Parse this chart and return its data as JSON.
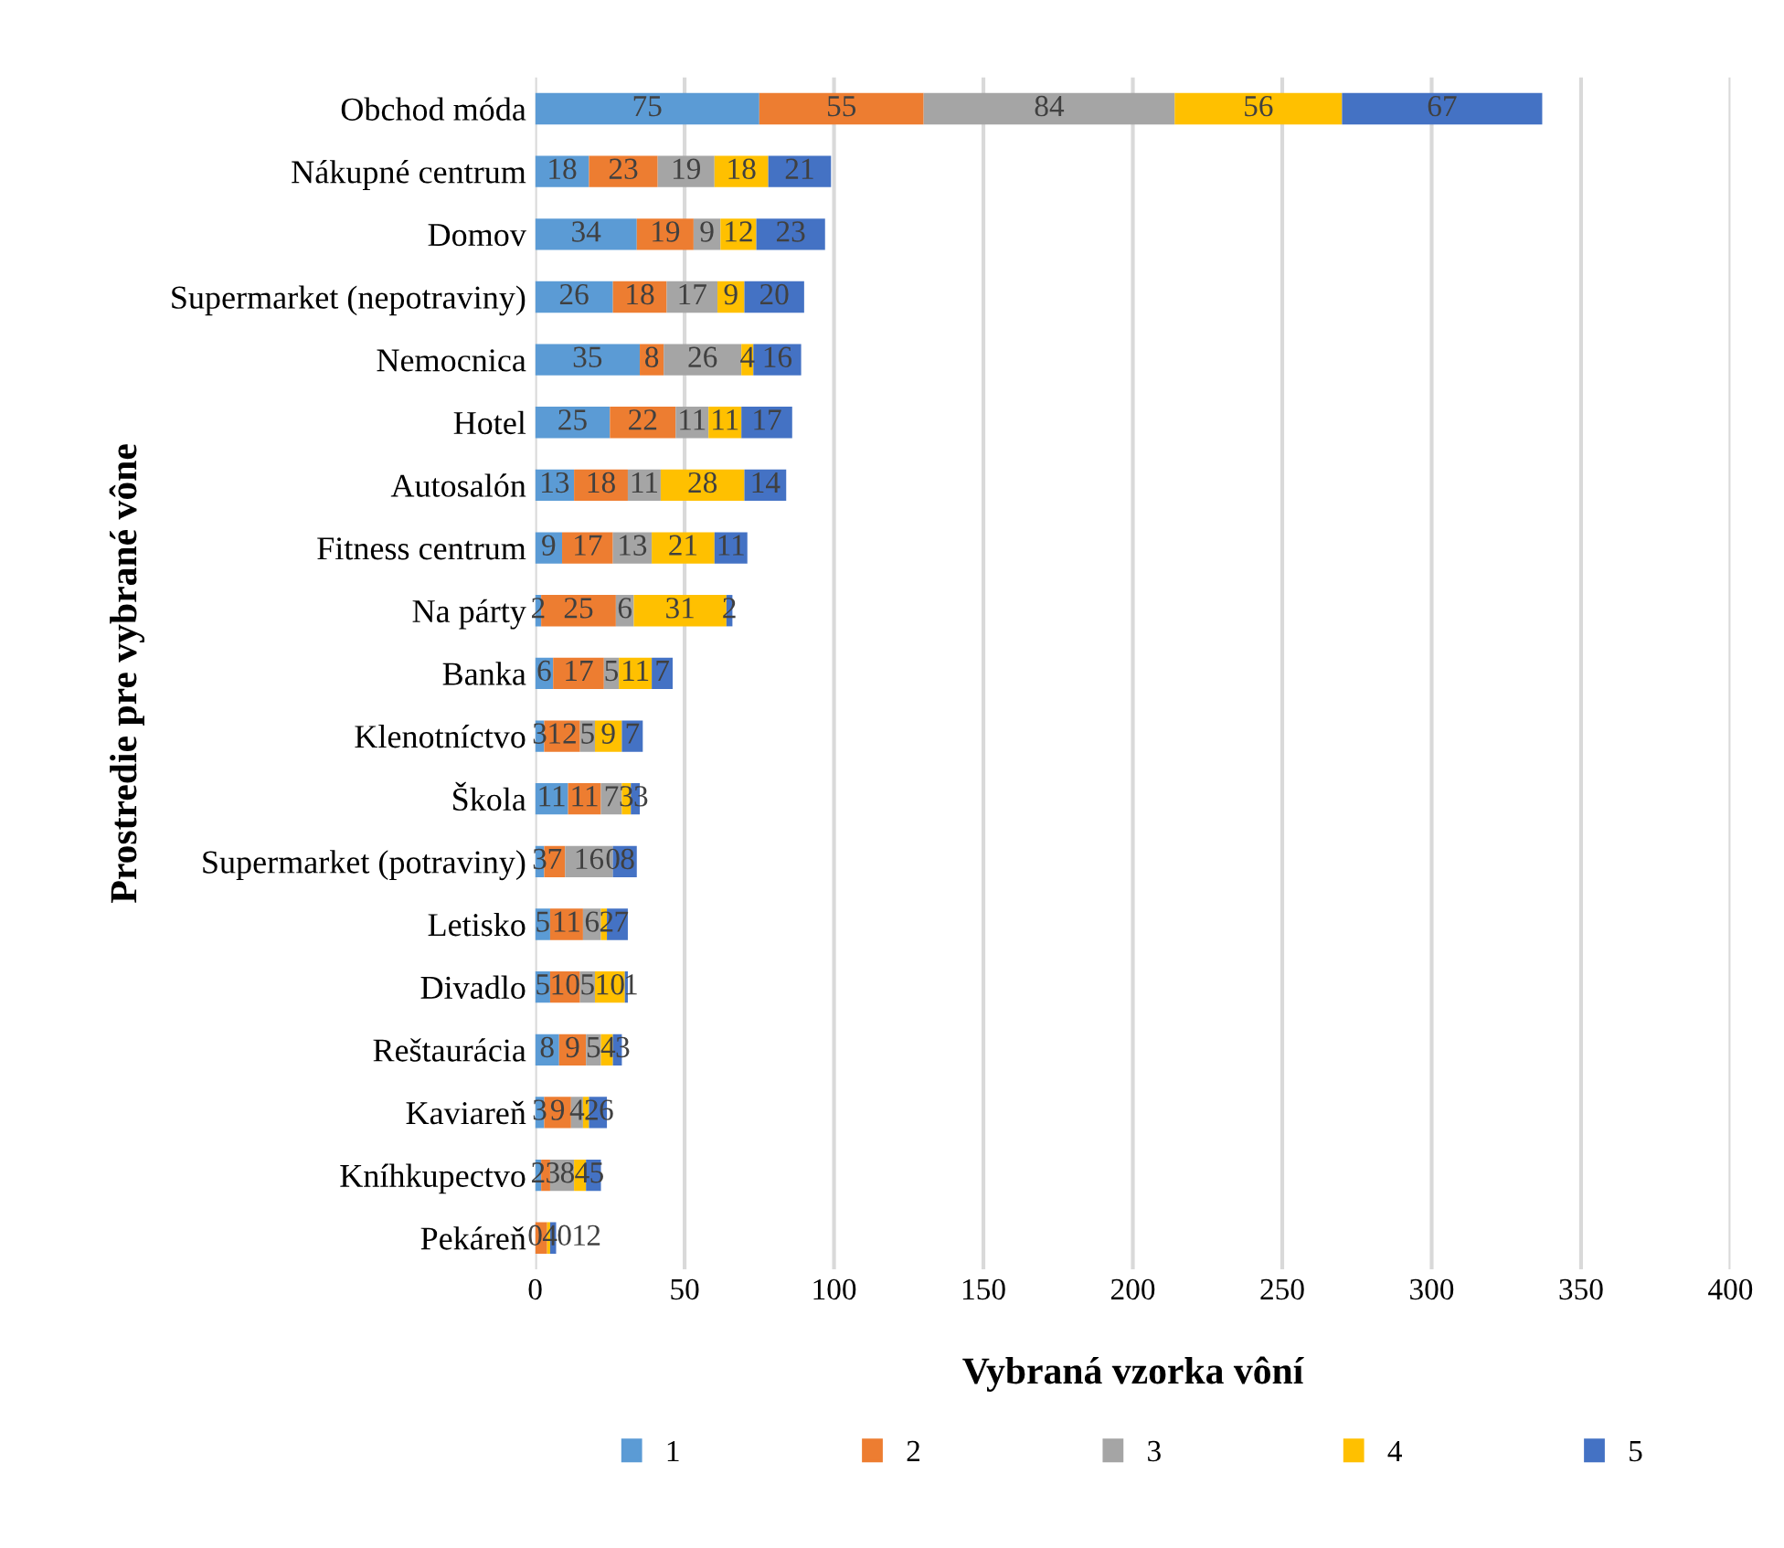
{
  "chart_data": {
    "type": "bar",
    "orientation": "horizontal",
    "stacked": true,
    "xlabel": "Vybraná vzorka vôní",
    "ylabel": "Prostredie pre vybrané vône",
    "categories": [
      "Obchod móda",
      "Nákupné centrum",
      "Domov",
      "Supermarket (nepotraviny)",
      "Nemocnica",
      "Hotel",
      "Autosalón",
      "Fitness centrum",
      "Na párty",
      "Banka",
      "Klenotníctvo",
      "Škola",
      "Supermarket (potraviny)",
      "Letisko",
      "Divadlo",
      "Reštaurácia",
      "Kaviareň",
      "Kníhkupectvo",
      "Pekáreň"
    ],
    "series": [
      {
        "name": "1",
        "color": "#5b9bd5",
        "values": [
          75,
          18,
          34,
          26,
          35,
          25,
          13,
          9,
          2,
          6,
          3,
          11,
          3,
          5,
          5,
          8,
          3,
          2,
          0
        ]
      },
      {
        "name": "2",
        "color": "#ed7d31",
        "values": [
          55,
          23,
          19,
          18,
          8,
          22,
          18,
          17,
          25,
          17,
          12,
          11,
          7,
          11,
          10,
          9,
          9,
          3,
          4
        ]
      },
      {
        "name": "3",
        "color": "#a5a5a5",
        "values": [
          84,
          19,
          9,
          17,
          26,
          11,
          11,
          13,
          6,
          5,
          5,
          7,
          16,
          6,
          5,
          5,
          4,
          8,
          0
        ]
      },
      {
        "name": "4",
        "color": "#ffc000",
        "values": [
          56,
          18,
          12,
          9,
          4,
          11,
          28,
          21,
          31,
          11,
          9,
          3,
          0,
          2,
          10,
          4,
          2,
          4,
          1
        ]
      },
      {
        "name": "5",
        "color": "#4472c4",
        "values": [
          67,
          21,
          23,
          20,
          16,
          17,
          14,
          11,
          2,
          7,
          7,
          3,
          8,
          7,
          1,
          3,
          6,
          5,
          2
        ]
      }
    ],
    "xlim": [
      0,
      400
    ],
    "xticks": [
      0,
      50,
      100,
      150,
      200,
      250,
      300,
      350,
      400
    ],
    "grid": "x",
    "legend": "bottom",
    "data_labels": true
  }
}
